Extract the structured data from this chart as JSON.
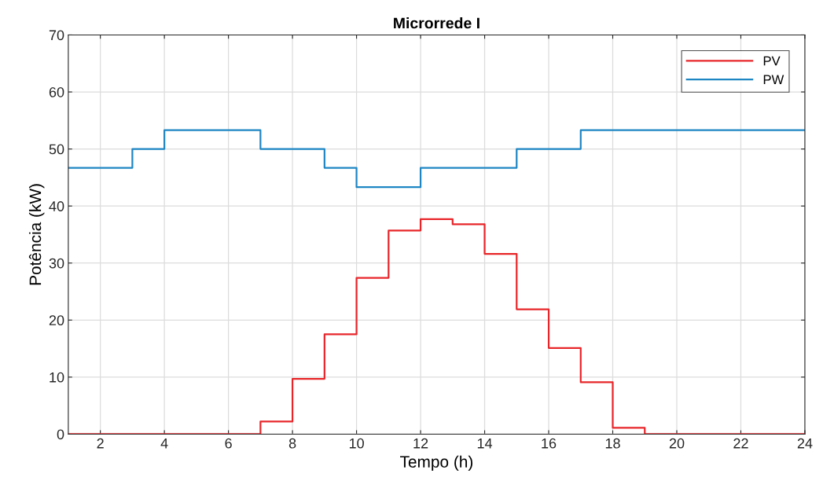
{
  "chart_data": {
    "type": "step",
    "title": "Microrrede I",
    "xlabel": "Tempo (h)",
    "ylabel": "Potência (kW)",
    "x": [
      1,
      2,
      3,
      4,
      5,
      6,
      7,
      8,
      9,
      10,
      11,
      12,
      13,
      14,
      15,
      16,
      17,
      18,
      19,
      20,
      21,
      22,
      23,
      24
    ],
    "series": [
      {
        "name": "PV",
        "color": "#e8262a",
        "values": [
          0,
          0,
          0,
          0,
          0,
          0,
          2.2,
          9.7,
          17.5,
          27.4,
          35.7,
          37.7,
          36.8,
          31.6,
          21.9,
          15.1,
          9.1,
          1.1,
          0,
          0,
          0,
          0,
          0,
          0
        ]
      },
      {
        "name": "PW",
        "color": "#1f86c4",
        "values": [
          46.7,
          46.7,
          50,
          53.3,
          53.3,
          53.3,
          50,
          50,
          46.7,
          43.3,
          43.3,
          46.7,
          46.7,
          46.7,
          50,
          50,
          53.3,
          53.3,
          53.3,
          53.3,
          53.3,
          53.3,
          53.3,
          53.3
        ]
      }
    ],
    "xlim": [
      1,
      24
    ],
    "xticks": [
      2,
      4,
      6,
      8,
      10,
      12,
      14,
      16,
      18,
      20,
      22,
      24
    ],
    "ylim": [
      0,
      70
    ],
    "yticks": [
      0,
      10,
      20,
      30,
      40,
      50,
      60,
      70
    ],
    "grid": true,
    "legend": "top right"
  }
}
